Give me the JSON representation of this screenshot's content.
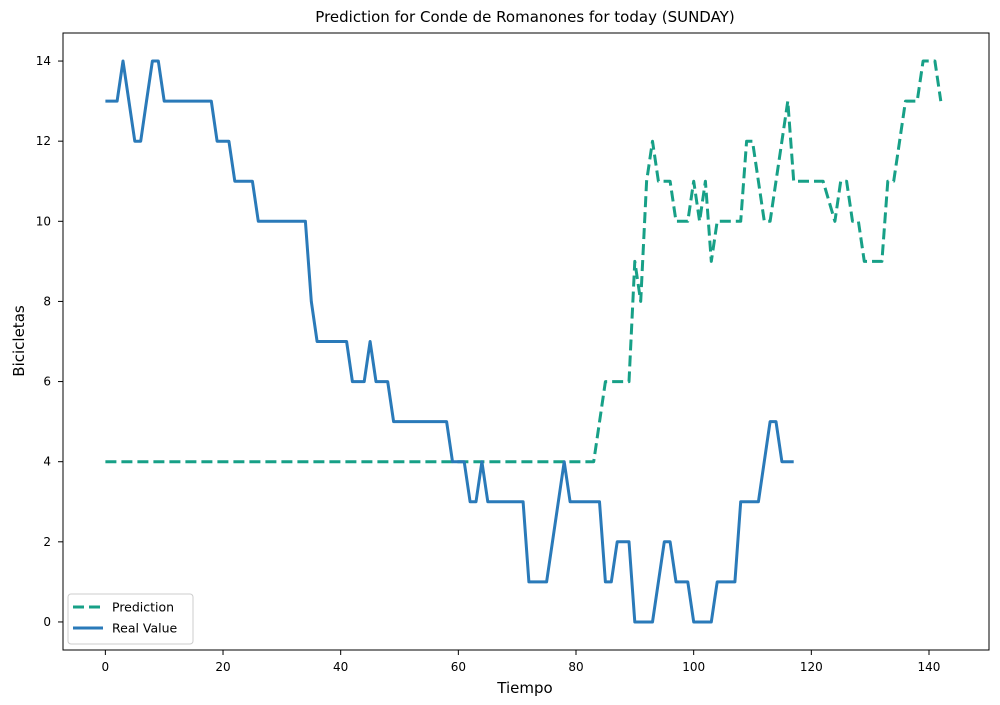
{
  "chart_data": {
    "type": "line",
    "title": "Prediction for Conde de Romanones for today (SUNDAY)",
    "xlabel": "Tiempo",
    "ylabel": "Bicicletas",
    "xlim": [
      -7.2,
      150.2
    ],
    "ylim": [
      -0.7,
      14.7
    ],
    "xticks": [
      0,
      20,
      40,
      60,
      80,
      100,
      120,
      140
    ],
    "yticks": [
      0,
      2,
      4,
      6,
      8,
      10,
      12,
      14
    ],
    "grid": false,
    "legend": "lower-left",
    "series": [
      {
        "name": "Prediction",
        "color": "#17a087",
        "style": "dashed",
        "points": [
          [
            0,
            4
          ],
          [
            83,
            4
          ],
          [
            85,
            6
          ],
          [
            89,
            6
          ],
          [
            90,
            9
          ],
          [
            91,
            8
          ],
          [
            92,
            11
          ],
          [
            93,
            12
          ],
          [
            94,
            11
          ],
          [
            96,
            11
          ],
          [
            97,
            10
          ],
          [
            99,
            10
          ],
          [
            100,
            11
          ],
          [
            101,
            10
          ],
          [
            102,
            11
          ],
          [
            103,
            9
          ],
          [
            104,
            10
          ],
          [
            107,
            10
          ],
          [
            108,
            10
          ],
          [
            109,
            12
          ],
          [
            110,
            12
          ],
          [
            111,
            11
          ],
          [
            112,
            10
          ],
          [
            113,
            10
          ],
          [
            114,
            11
          ],
          [
            115,
            12
          ],
          [
            116,
            13
          ],
          [
            117,
            11
          ],
          [
            122,
            11
          ],
          [
            124,
            10
          ],
          [
            125,
            11
          ],
          [
            126,
            11
          ],
          [
            127,
            10
          ],
          [
            128,
            10
          ],
          [
            129,
            9
          ],
          [
            132,
            9
          ],
          [
            133,
            11
          ],
          [
            134,
            11
          ],
          [
            135,
            12
          ],
          [
            136,
            13
          ],
          [
            138,
            13
          ],
          [
            139,
            14
          ],
          [
            141,
            14
          ],
          [
            142,
            13
          ]
        ]
      },
      {
        "name": "Real Value",
        "color": "#2a7ab9",
        "style": "solid",
        "points": [
          [
            0,
            13
          ],
          [
            2,
            13
          ],
          [
            3,
            14
          ],
          [
            4,
            13
          ],
          [
            5,
            12
          ],
          [
            6,
            12
          ],
          [
            7,
            13
          ],
          [
            8,
            14
          ],
          [
            9,
            14
          ],
          [
            10,
            13
          ],
          [
            18,
            13
          ],
          [
            19,
            12
          ],
          [
            21,
            12
          ],
          [
            22,
            11
          ],
          [
            25,
            11
          ],
          [
            26,
            10
          ],
          [
            34,
            10
          ],
          [
            35,
            8
          ],
          [
            36,
            7
          ],
          [
            41,
            7
          ],
          [
            42,
            6
          ],
          [
            44,
            6
          ],
          [
            45,
            7
          ],
          [
            46,
            6
          ],
          [
            48,
            6
          ],
          [
            49,
            5
          ],
          [
            58,
            5
          ],
          [
            59,
            4
          ],
          [
            61,
            4
          ],
          [
            62,
            3
          ],
          [
            63,
            3
          ],
          [
            64,
            4
          ],
          [
            65,
            3
          ],
          [
            71,
            3
          ],
          [
            72,
            1
          ],
          [
            75,
            1
          ],
          [
            78,
            4
          ],
          [
            79,
            3
          ],
          [
            84,
            3
          ],
          [
            85,
            1
          ],
          [
            86,
            1
          ],
          [
            87,
            2
          ],
          [
            89,
            2
          ],
          [
            90,
            0
          ],
          [
            93,
            0
          ],
          [
            95,
            2
          ],
          [
            96,
            2
          ],
          [
            97,
            1
          ],
          [
            99,
            1
          ],
          [
            100,
            0
          ],
          [
            103,
            0
          ],
          [
            104,
            1
          ],
          [
            107,
            1
          ],
          [
            108,
            3
          ],
          [
            111,
            3
          ],
          [
            113,
            5
          ],
          [
            114,
            5
          ],
          [
            115,
            4
          ],
          [
            117,
            4
          ]
        ]
      }
    ]
  }
}
